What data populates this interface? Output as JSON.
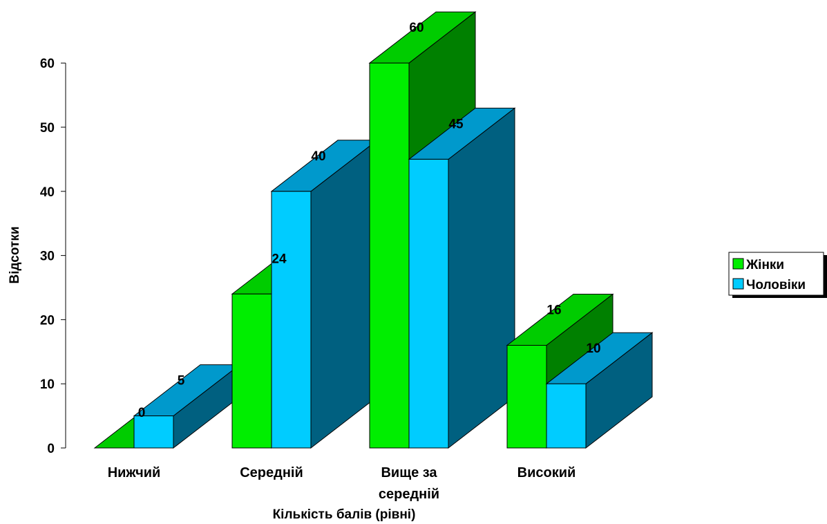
{
  "chart_data": {
    "type": "bar",
    "title": "",
    "xlabel": "Кількість балів (рівні)",
    "ylabel": "Відсотки",
    "ylim": [
      0,
      60
    ],
    "yticks": [
      0,
      10,
      20,
      30,
      40,
      50,
      60
    ],
    "categories": [
      [
        "Нижчий"
      ],
      [
        "Середній"
      ],
      [
        "Вище за",
        "середній"
      ],
      [
        "Високий"
      ]
    ],
    "series": [
      {
        "name": "Жінки",
        "values": [
          0,
          24,
          60,
          16
        ],
        "color": "#00ee00",
        "top_color": "#00cc00",
        "side_color": "#008000"
      },
      {
        "name": "Чоловіки",
        "values": [
          5,
          40,
          45,
          10
        ],
        "color": "#00ccff",
        "top_color": "#0099cc",
        "side_color": "#006080"
      }
    ],
    "grid": false,
    "legend_position": "right",
    "three_d": true
  }
}
